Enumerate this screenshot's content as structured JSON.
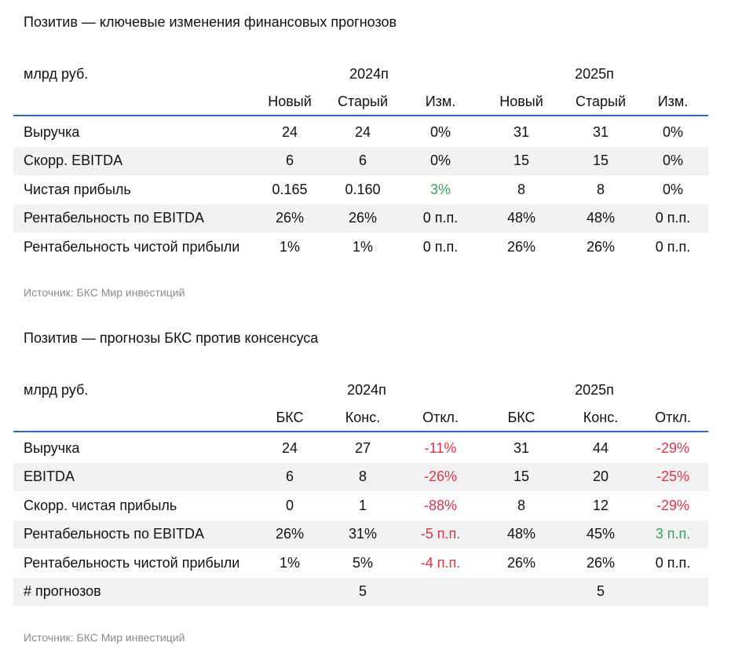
{
  "table1": {
    "title": "Позитив — ключевые изменения финансовых прогнозов",
    "unit": "млрд руб.",
    "years": [
      "2024п",
      "2025п"
    ],
    "columns": [
      "Новый",
      "Старый",
      "Изм.",
      "Новый",
      "Старый",
      "Изм."
    ],
    "rows": [
      {
        "label": "Выручка",
        "values": [
          "24",
          "24",
          "0%",
          "31",
          "31",
          "0%"
        ]
      },
      {
        "label": "Скорр. EBITDA",
        "values": [
          "6",
          "6",
          "0%",
          "15",
          "15",
          "0%"
        ]
      },
      {
        "label": "Чистая прибыль",
        "values": [
          "0.165",
          "0.160",
          "3%",
          "8",
          "8",
          "0%"
        ]
      },
      {
        "label": "Рентабельность по EBITDA",
        "values": [
          "26%",
          "26%",
          "0 п.п.",
          "48%",
          "48%",
          "0 п.п."
        ]
      },
      {
        "label": "Рентабельность чистой прибыли",
        "values": [
          "1%",
          "1%",
          "0 п.п.",
          "26%",
          "26%",
          "0 п.п."
        ]
      }
    ],
    "source": "Источник: БКС Мир инвестиций"
  },
  "table2": {
    "title": "Позитив — прогнозы БКС против консенсуса",
    "unit": "млрд руб.",
    "years": [
      "2024п",
      "2025п"
    ],
    "columns": [
      "БКС",
      "Конс.",
      "Откл.",
      "БКС",
      "Конс.",
      "Откл."
    ],
    "rows": [
      {
        "label": "Выручка",
        "values": [
          "24",
          "27",
          "-11%",
          "31",
          "44",
          "-29%"
        ]
      },
      {
        "label": "EBITDA",
        "values": [
          "6",
          "8",
          "-26%",
          "15",
          "20",
          "-25%"
        ]
      },
      {
        "label": "Скорр. чистая прибыль",
        "values": [
          "0",
          "1",
          "-88%",
          "8",
          "12",
          "-29%"
        ]
      },
      {
        "label": "Рентабельность по EBITDA",
        "values": [
          "26%",
          "31%",
          "-5 п.п.",
          "48%",
          "45%",
          "3 п.п."
        ]
      },
      {
        "label": "Рентабельность чистой прибыли",
        "values": [
          "1%",
          "5%",
          "-4 п.п.",
          "26%",
          "26%",
          "0 п.п."
        ]
      },
      {
        "label": "# прогнозов",
        "values": [
          "",
          "5",
          "",
          "",
          "5",
          ""
        ]
      }
    ],
    "source": "Источник: БКС Мир инвестиций"
  },
  "colors": {
    "header_rule": "#2d6fb0",
    "negative": "#e0344a",
    "positive": "#3c9e63",
    "shade": "#f2f2f2"
  }
}
